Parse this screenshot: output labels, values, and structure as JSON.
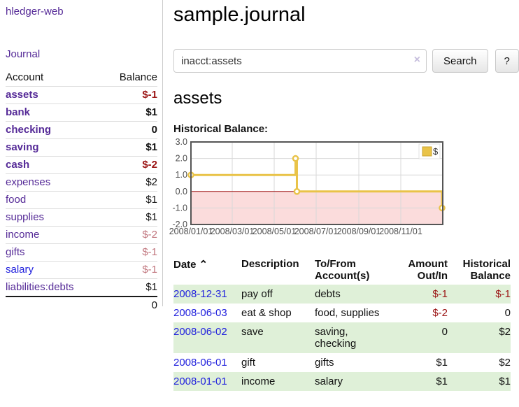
{
  "sidebar": {
    "app_title": "hledger-web",
    "journal_link": "Journal",
    "accounts_table": {
      "headers": {
        "account": "Account",
        "balance": "Balance"
      },
      "rows": [
        {
          "name": "assets",
          "balance": "$-1",
          "indent": 1,
          "bold": true,
          "balance_style": "neg-strong",
          "link_color": "purple"
        },
        {
          "name": "bank",
          "balance": "$1",
          "indent": 2,
          "bold": true,
          "balance_style": "pos",
          "link_color": "purple"
        },
        {
          "name": "checking",
          "balance": "0",
          "indent": 3,
          "bold": true,
          "balance_style": "pos",
          "link_color": "purple"
        },
        {
          "name": "saving",
          "balance": "$1",
          "indent": 3,
          "bold": true,
          "balance_style": "pos",
          "link_color": "purple"
        },
        {
          "name": "cash",
          "balance": "$-2",
          "indent": 2,
          "bold": true,
          "balance_style": "neg-strong",
          "link_color": "purple"
        },
        {
          "name": "expenses",
          "balance": "$2",
          "indent": 1,
          "bold": false,
          "balance_style": "pos",
          "link_color": "purple"
        },
        {
          "name": "food",
          "balance": "$1",
          "indent": 2,
          "bold": false,
          "balance_style": "pos",
          "link_color": "purple"
        },
        {
          "name": "supplies",
          "balance": "$1",
          "indent": 2,
          "bold": false,
          "balance_style": "pos",
          "link_color": "purple"
        },
        {
          "name": "income",
          "balance": "$-2",
          "indent": 1,
          "bold": false,
          "balance_style": "neg-soft",
          "link_color": "purple"
        },
        {
          "name": "gifts",
          "balance": "$-1",
          "indent": 2,
          "bold": false,
          "balance_style": "neg-soft",
          "link_color": "purple"
        },
        {
          "name": "salary",
          "balance": "$-1",
          "indent": 2,
          "bold": false,
          "balance_style": "neg-soft",
          "link_color": "blue"
        },
        {
          "name": "liabilities:debts",
          "balance": "$1",
          "indent": 1,
          "bold": false,
          "balance_style": "pos",
          "link_color": "purple"
        }
      ],
      "total": "0"
    }
  },
  "main": {
    "title": "sample.journal",
    "search": {
      "value": "inacct:assets",
      "clear_icon": "×",
      "button_label": "Search",
      "help_label": "?"
    },
    "account_heading": "assets"
  },
  "chart_data": {
    "type": "line",
    "title": "Historical Balance:",
    "step": true,
    "legend_position": "top-right",
    "series": [
      {
        "name": "$",
        "color": "#e9c348",
        "points": [
          {
            "date": "2008-01-01",
            "day": 0,
            "value": 1
          },
          {
            "date": "2008-06-01",
            "day": 152,
            "value": 2
          },
          {
            "date": "2008-06-03",
            "day": 154,
            "value": 0
          },
          {
            "date": "2008-12-31",
            "day": 365,
            "value": -1
          }
        ]
      }
    ],
    "x_ticks": [
      {
        "label": "2008/01/01",
        "day": 0
      },
      {
        "label": "2008/03/01",
        "day": 60
      },
      {
        "label": "2008/05/01",
        "day": 121
      },
      {
        "label": "2008/07/01",
        "day": 182
      },
      {
        "label": "2008/09/01",
        "day": 244
      },
      {
        "label": "2008/11/01",
        "day": 305
      }
    ],
    "x_range_days": 366,
    "y_ticks": [
      {
        "label": "3.0",
        "value": 3
      },
      {
        "label": "2.0",
        "value": 2
      },
      {
        "label": "1.0",
        "value": 1
      },
      {
        "label": "0.0",
        "value": 0
      },
      {
        "label": "-1.0",
        "value": -1
      },
      {
        "label": "-2.0",
        "value": -2
      }
    ],
    "ylim": [
      -2,
      3
    ],
    "grid": true,
    "colors": {
      "grid": "#d8d8d8",
      "border": "#555555",
      "zero_line": "#9c0b0b",
      "negative_region": "#fbdcdc",
      "marker_fill": "#ffffff",
      "tick_text": "#4d4d4d"
    }
  },
  "register_table": {
    "headers": [
      {
        "label": "Date",
        "align": "left",
        "sort_icon": "⌃"
      },
      {
        "label": "Description",
        "align": "left"
      },
      {
        "label": "To/From Account(s)",
        "align": "left"
      },
      {
        "label": "Amount Out/In",
        "align": "right"
      },
      {
        "label": "Historical Balance",
        "align": "right"
      }
    ],
    "rows": [
      {
        "date": "2008-12-31",
        "description": "pay off",
        "accounts": [
          "debts"
        ],
        "amount": "$-1",
        "balance": "$-1"
      },
      {
        "date": "2008-06-03",
        "description": "eat & shop",
        "accounts": [
          "food,",
          "supplies"
        ],
        "amount": "$-2",
        "balance": "0"
      },
      {
        "date": "2008-06-02",
        "description": "save",
        "accounts": [
          "saving,",
          "checking"
        ],
        "amount": "0",
        "balance": "$2"
      },
      {
        "date": "2008-06-01",
        "description": "gift",
        "accounts": [
          "gifts"
        ],
        "amount": "$1",
        "balance": "$2"
      },
      {
        "date": "2008-01-01",
        "description": "income",
        "accounts": [
          "salary"
        ],
        "amount": "$1",
        "balance": "$1"
      }
    ]
  },
  "colors": {
    "link_purple": "#552a97",
    "link_blue": "#2222dd",
    "row_stripe_green": "#dff0d8",
    "negative_strong": "#9b1515",
    "negative_soft": "#c0747c"
  }
}
